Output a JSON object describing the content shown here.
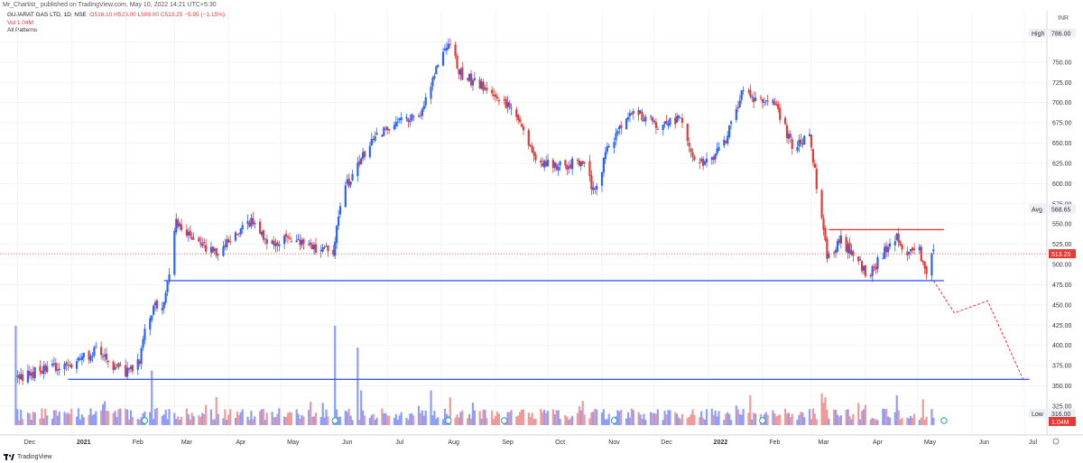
{
  "header": {
    "published": "Mr_Chartist_ published on TradingView.com, May 10, 2022 14:21 UTC+5:30"
  },
  "legend": {
    "symbol": "GUJARAT GAS LTD, 1D, NSE",
    "ohlc": "O516.10 H529.00 L509.00 C513.25 −5.95 (−1.15%)",
    "ohlc_parts": {
      "open": "516.10",
      "high": "529.00",
      "low": "509.00",
      "close": "513.25",
      "change": "−5.95 (−1.15%)"
    },
    "vol": "Vol 1.04M",
    "patterns": "All Patterns"
  },
  "footer": {
    "brand": "TradingView"
  },
  "colors": {
    "up": "#2962ff",
    "down": "#e53935",
    "vol_up": "#8c9eff",
    "vol_down": "#ef9a9a",
    "support": "#3d5afe",
    "resistance": "#e53935",
    "grid": "#f2f3f5",
    "price_tag": "#e53935"
  },
  "chart_data": {
    "type": "candlestick",
    "symbol": "GUJARAT GAS LTD",
    "interval": "1D",
    "exchange": "NSE",
    "currency": "INR",
    "ylim": [
      316,
      800
    ],
    "x_ticks": [
      "Dec",
      "2021",
      "Feb",
      "Mar",
      "Apr",
      "May",
      "Jun",
      "Jul",
      "Aug",
      "Sep",
      "Oct",
      "Nov",
      "Dec",
      "2022",
      "Feb",
      "Mar",
      "Apr",
      "May",
      "Jun",
      "Jul"
    ],
    "y_ticks": [
      "786.00",
      "750.00",
      "725.00",
      "700.00",
      "675.00",
      "650.00",
      "625.00",
      "600.00",
      "575.00",
      "568.65",
      "550.00",
      "525.00",
      "513.25",
      "500.00",
      "475.00",
      "450.00",
      "425.00",
      "400.00",
      "375.00",
      "350.00",
      "325.00",
      "316.00",
      "1.04M"
    ],
    "y_grid": [
      325,
      350,
      375,
      400,
      425,
      450,
      475,
      500,
      525,
      550,
      575,
      600,
      625,
      650,
      675,
      700,
      725,
      750,
      775
    ],
    "y_tags": [
      {
        "label": "High",
        "value": "786.00",
        "price": 786,
        "style": "plain"
      },
      {
        "label": "Avg",
        "value": "568.65",
        "price": 568.65,
        "style": "plain"
      },
      {
        "label": "",
        "value": "513.25",
        "price": 513.25,
        "style": "current"
      },
      {
        "label": "Low",
        "value": "316.00",
        "price": 316,
        "style": "plain"
      },
      {
        "label": "",
        "value": "1.04M",
        "price": 306,
        "style": "volume"
      }
    ],
    "price_anchors": [
      [
        "2020-11-30",
        355
      ],
      [
        "2020-12-15",
        370
      ],
      [
        "2021-01-05",
        380
      ],
      [
        "2021-01-15",
        393
      ],
      [
        "2021-02-01",
        365
      ],
      [
        "2021-02-09",
        380
      ],
      [
        "2021-02-12",
        420
      ],
      [
        "2021-02-17",
        448
      ],
      [
        "2021-02-22",
        440
      ],
      [
        "2021-02-26",
        490
      ],
      [
        "2021-03-02",
        550
      ],
      [
        "2021-03-12",
        530
      ],
      [
        "2021-03-25",
        512
      ],
      [
        "2021-04-05",
        540
      ],
      [
        "2021-04-15",
        555
      ],
      [
        "2021-04-25",
        525
      ],
      [
        "2021-05-05",
        530
      ],
      [
        "2021-05-20",
        522
      ],
      [
        "2021-05-31",
        515
      ],
      [
        "2021-06-05",
        585
      ],
      [
        "2021-06-15",
        630
      ],
      [
        "2021-06-30",
        670
      ],
      [
        "2021-07-10",
        680
      ],
      [
        "2021-07-20",
        680
      ],
      [
        "2021-07-28",
        740
      ],
      [
        "2021-08-02",
        760
      ],
      [
        "2021-08-05",
        775
      ],
      [
        "2021-08-12",
        735
      ],
      [
        "2021-08-20",
        725
      ],
      [
        "2021-09-01",
        710
      ],
      [
        "2021-09-15",
        680
      ],
      [
        "2021-09-25",
        625
      ],
      [
        "2021-10-10",
        620
      ],
      [
        "2021-10-20",
        630
      ],
      [
        "2021-10-28",
        588
      ],
      [
        "2021-11-05",
        650
      ],
      [
        "2021-11-20",
        690
      ],
      [
        "2021-12-05",
        670
      ],
      [
        "2021-12-15",
        682
      ],
      [
        "2021-12-25",
        625
      ],
      [
        "2022-01-05",
        635
      ],
      [
        "2022-01-12",
        660
      ],
      [
        "2022-01-20",
        712
      ],
      [
        "2022-01-28",
        705
      ],
      [
        "2022-02-08",
        700
      ],
      [
        "2022-02-18",
        645
      ],
      [
        "2022-02-28",
        660
      ],
      [
        "2022-03-04",
        600
      ],
      [
        "2022-03-10",
        510
      ],
      [
        "2022-03-18",
        530
      ],
      [
        "2022-03-28",
        505
      ],
      [
        "2022-04-02",
        483
      ],
      [
        "2022-04-10",
        510
      ],
      [
        "2022-04-18",
        535
      ],
      [
        "2022-04-25",
        518
      ],
      [
        "2022-05-02",
        522
      ],
      [
        "2022-05-05",
        488
      ],
      [
        "2022-05-10",
        513
      ]
    ],
    "volume_spikes": [
      [
        "2020-11-30",
        1.0
      ],
      [
        "2021-02-16",
        0.55
      ],
      [
        "2021-06-01",
        1.0
      ],
      [
        "2021-06-14",
        0.78
      ],
      [
        "2021-06-16",
        0.35
      ],
      [
        "2021-07-26",
        0.35
      ],
      [
        "2021-08-06",
        0.28
      ],
      [
        "2022-01-25",
        0.3
      ],
      [
        "2022-03-07",
        0.32
      ],
      [
        "2022-03-09",
        0.28
      ],
      [
        "2022-04-19",
        0.3
      ],
      [
        "2022-05-04",
        0.26
      ]
    ],
    "annotations": {
      "support_1": {
        "price": 480,
        "from": "2021-02-23",
        "to": "2022-05-16",
        "color": "support"
      },
      "support_2": {
        "price": 358,
        "from": "2020-12-30",
        "to": "2022-07-04",
        "color": "support"
      },
      "resistance": {
        "price": 543,
        "from": "2022-03-11",
        "to": "2022-05-16",
        "color": "resistance"
      },
      "projection": [
        [
          "2022-05-10",
          480
        ],
        [
          "2022-05-22",
          440
        ],
        [
          "2022-06-10",
          455
        ],
        [
          "2022-07-01",
          355
        ]
      ]
    },
    "event_markers": [
      "2021-02-12",
      "2021-06-01",
      "2021-08-05",
      "2021-09-06",
      "2021-11-08",
      "2022-02-01",
      "2022-05-16"
    ]
  }
}
